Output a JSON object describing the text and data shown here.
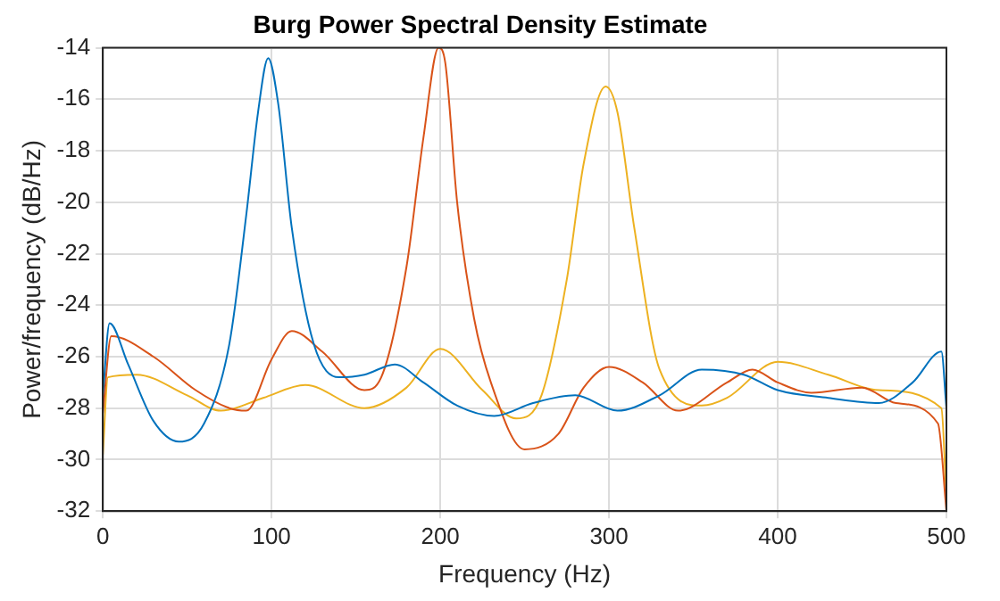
{
  "chart_data": {
    "type": "line",
    "title": "Burg Power Spectral Density Estimate",
    "xlabel": "Frequency (Hz)",
    "ylabel": "Power/frequency (dB/Hz)",
    "xlim": [
      0,
      500
    ],
    "xticks": [
      0,
      100,
      200,
      300,
      400,
      500
    ],
    "ylim": [
      -32,
      -14
    ],
    "yticks": [
      -32,
      -30,
      -28,
      -26,
      -24,
      -22,
      -20,
      -18,
      -16,
      -14
    ],
    "grid": true,
    "legend": false,
    "marker": "none",
    "line_style": "solid",
    "series": [
      {
        "color": "#0072bd",
        "x": [
          0,
          4,
          15,
          30,
          45,
          60,
          75,
          85,
          92,
          98,
          104,
          112,
          125,
          140,
          155,
          173,
          190,
          210,
          232,
          255,
          280,
          305,
          330,
          355,
          380,
          400,
          430,
          460,
          480,
          497,
          500
        ],
        "values": [
          -27.5,
          -24.7,
          -26.3,
          -28.5,
          -29.3,
          -28.6,
          -25.5,
          -20.5,
          -16.5,
          -14.4,
          -16.2,
          -21,
          -25.5,
          -26.8,
          -26.7,
          -26.3,
          -27,
          -27.9,
          -28.3,
          -27.8,
          -27.5,
          -28.1,
          -27.5,
          -26.5,
          -26.7,
          -27.3,
          -27.6,
          -27.8,
          -27,
          -25.8,
          -28
        ]
      },
      {
        "color": "#d95319",
        "x": [
          0,
          5,
          30,
          55,
          75,
          85,
          100,
          112,
          130,
          155,
          165,
          180,
          190,
          199,
          203,
          210,
          220,
          230,
          250,
          270,
          285,
          300,
          320,
          341,
          370,
          385,
          400,
          420,
          450,
          470,
          495,
          500
        ],
        "values": [
          -28.2,
          -25.2,
          -26,
          -27.3,
          -28,
          -28.1,
          -26.1,
          -25,
          -25.8,
          -27.3,
          -26.8,
          -22.5,
          -17.5,
          -14,
          -14.6,
          -20,
          -24.5,
          -27,
          -29.6,
          -29,
          -27.2,
          -26.4,
          -27,
          -28.1,
          -27,
          -26.5,
          -27,
          -27.4,
          -27.2,
          -27.8,
          -28.6,
          -32
        ]
      },
      {
        "color": "#edb120",
        "x": [
          0,
          3,
          20,
          50,
          70,
          95,
          120,
          155,
          180,
          200,
          225,
          245,
          260,
          275,
          285,
          298,
          305,
          315,
          330,
          355,
          370,
          400,
          430,
          460,
          497,
          500
        ],
        "values": [
          -29.8,
          -26.8,
          -26.7,
          -27.5,
          -28.1,
          -27.6,
          -27.1,
          -28,
          -27.2,
          -25.7,
          -27.3,
          -28.4,
          -27.5,
          -23,
          -18.5,
          -15.5,
          -16.5,
          -21,
          -26.5,
          -27.9,
          -27.6,
          -26.2,
          -26.7,
          -27.3,
          -28,
          -31.5
        ]
      }
    ]
  }
}
